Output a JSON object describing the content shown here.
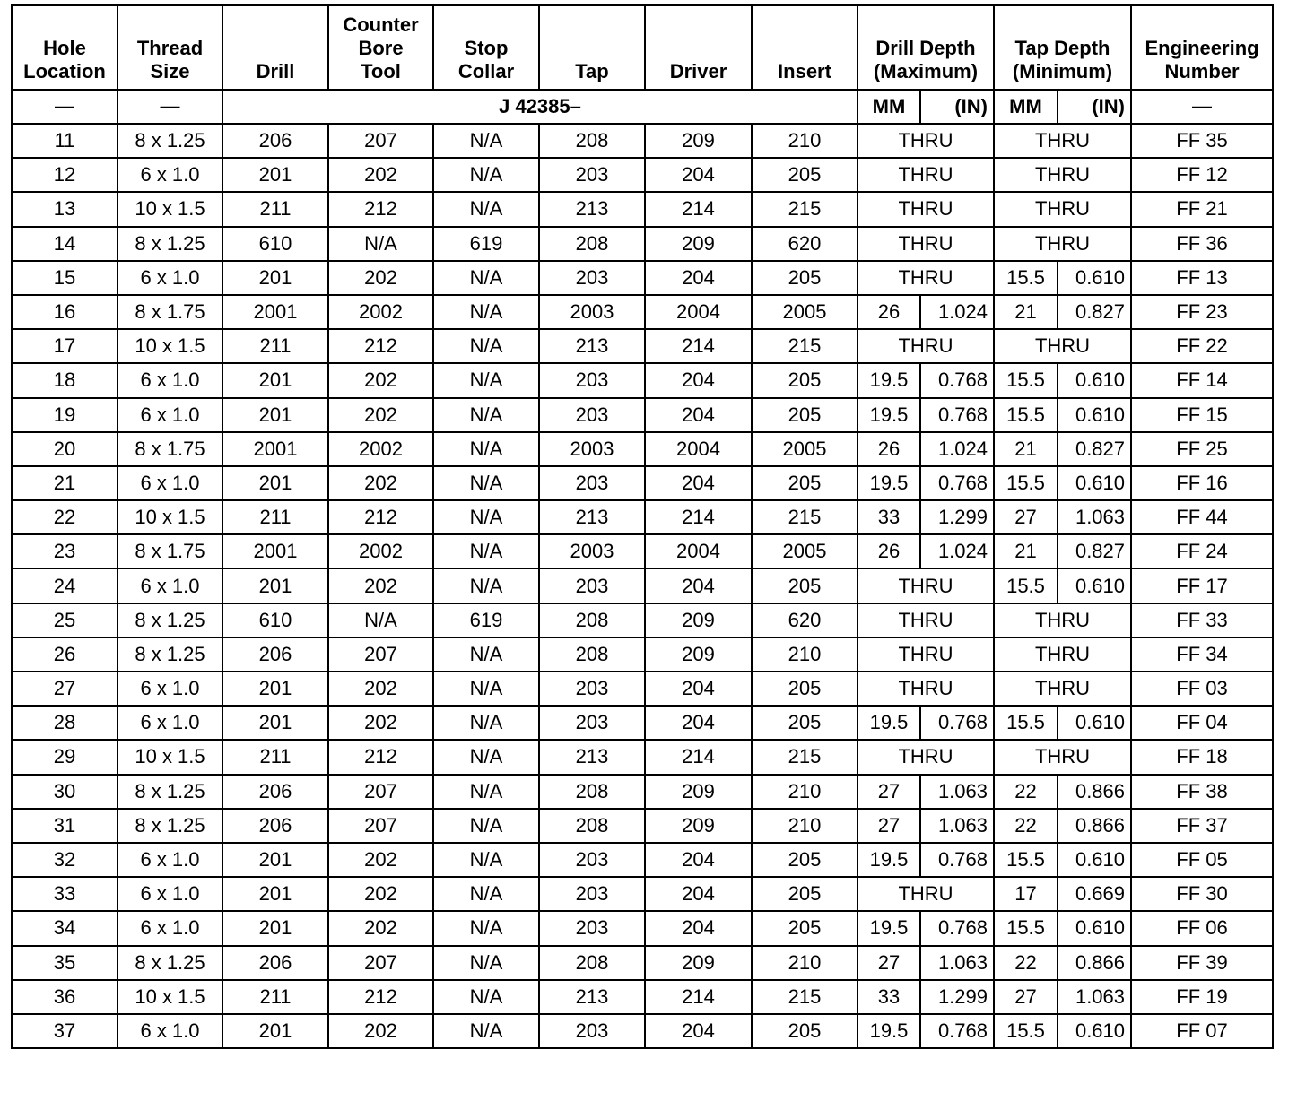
{
  "table": {
    "header": [
      "Hole\nLocation",
      "Thread\nSize",
      "Drill",
      "Counter\nBore\nTool",
      "Stop\nCollar",
      "Tap",
      "Driver",
      "Insert",
      "Drill Depth\n(Maximum)",
      "Tap Depth\n(Minimum)",
      "Engineering\nNumber"
    ],
    "subheader": {
      "location": "—",
      "thread": "—",
      "tool_prefix": "J 42385–",
      "drill_units": [
        "MM",
        "(IN)"
      ],
      "tap_units": [
        "MM",
        "(IN)"
      ],
      "number": "—"
    },
    "rows": [
      {
        "location": "11",
        "thread": "8 x 1.25",
        "tools": [
          "206",
          "207",
          "N/A",
          "208",
          "209",
          "210"
        ],
        "drill_depth": [
          "THRU"
        ],
        "tap_depth": [
          "THRU"
        ],
        "number": "FF 35"
      },
      {
        "location": "12",
        "thread": "6 x 1.0",
        "tools": [
          "201",
          "202",
          "N/A",
          "203",
          "204",
          "205"
        ],
        "drill_depth": [
          "THRU"
        ],
        "tap_depth": [
          "THRU"
        ],
        "number": "FF 12"
      },
      {
        "location": "13",
        "thread": "10 x 1.5",
        "tools": [
          "211",
          "212",
          "N/A",
          "213",
          "214",
          "215"
        ],
        "drill_depth": [
          "THRU"
        ],
        "tap_depth": [
          "THRU"
        ],
        "number": "FF 21"
      },
      {
        "location": "14",
        "thread": "8 x 1.25",
        "tools": [
          "610",
          "N/A",
          "619",
          "208",
          "209",
          "620"
        ],
        "drill_depth": [
          "THRU"
        ],
        "tap_depth": [
          "THRU"
        ],
        "number": "FF 36"
      },
      {
        "location": "15",
        "thread": "6 x 1.0",
        "tools": [
          "201",
          "202",
          "N/A",
          "203",
          "204",
          "205"
        ],
        "drill_depth": [
          "THRU"
        ],
        "tap_depth": [
          "15.5",
          "0.610"
        ],
        "number": "FF 13"
      },
      {
        "location": "16",
        "thread": "8 x 1.75",
        "tools": [
          "2001",
          "2002",
          "N/A",
          "2003",
          "2004",
          "2005"
        ],
        "drill_depth": [
          "26",
          "1.024"
        ],
        "tap_depth": [
          "21",
          "0.827"
        ],
        "number": "FF 23"
      },
      {
        "location": "17",
        "thread": "10 x 1.5",
        "tools": [
          "211",
          "212",
          "N/A",
          "213",
          "214",
          "215"
        ],
        "drill_depth": [
          "THRU"
        ],
        "tap_depth": [
          "THRU"
        ],
        "number": "FF 22"
      },
      {
        "location": "18",
        "thread": "6 x 1.0",
        "tools": [
          "201",
          "202",
          "N/A",
          "203",
          "204",
          "205"
        ],
        "drill_depth": [
          "19.5",
          "0.768"
        ],
        "tap_depth": [
          "15.5",
          "0.610"
        ],
        "number": "FF 14"
      },
      {
        "location": "19",
        "thread": "6 x 1.0",
        "tools": [
          "201",
          "202",
          "N/A",
          "203",
          "204",
          "205"
        ],
        "drill_depth": [
          "19.5",
          "0.768"
        ],
        "tap_depth": [
          "15.5",
          "0.610"
        ],
        "number": "FF 15"
      },
      {
        "location": "20",
        "thread": "8 x 1.75",
        "tools": [
          "2001",
          "2002",
          "N/A",
          "2003",
          "2004",
          "2005"
        ],
        "drill_depth": [
          "26",
          "1.024"
        ],
        "tap_depth": [
          "21",
          "0.827"
        ],
        "number": "FF 25"
      },
      {
        "location": "21",
        "thread": "6 x 1.0",
        "tools": [
          "201",
          "202",
          "N/A",
          "203",
          "204",
          "205"
        ],
        "drill_depth": [
          "19.5",
          "0.768"
        ],
        "tap_depth": [
          "15.5",
          "0.610"
        ],
        "number": "FF 16"
      },
      {
        "location": "22",
        "thread": "10 x 1.5",
        "tools": [
          "211",
          "212",
          "N/A",
          "213",
          "214",
          "215"
        ],
        "drill_depth": [
          "33",
          "1.299"
        ],
        "tap_depth": [
          "27",
          "1.063"
        ],
        "number": "FF 44"
      },
      {
        "location": "23",
        "thread": "8 x 1.75",
        "tools": [
          "2001",
          "2002",
          "N/A",
          "2003",
          "2004",
          "2005"
        ],
        "drill_depth": [
          "26",
          "1.024"
        ],
        "tap_depth": [
          "21",
          "0.827"
        ],
        "number": "FF 24"
      },
      {
        "location": "24",
        "thread": "6 x 1.0",
        "tools": [
          "201",
          "202",
          "N/A",
          "203",
          "204",
          "205"
        ],
        "drill_depth": [
          "THRU"
        ],
        "tap_depth": [
          "15.5",
          "0.610"
        ],
        "number": "FF 17"
      },
      {
        "location": "25",
        "thread": "8 x 1.25",
        "tools": [
          "610",
          "N/A",
          "619",
          "208",
          "209",
          "620"
        ],
        "drill_depth": [
          "THRU"
        ],
        "tap_depth": [
          "THRU"
        ],
        "number": "FF 33"
      },
      {
        "location": "26",
        "thread": "8 x 1.25",
        "tools": [
          "206",
          "207",
          "N/A",
          "208",
          "209",
          "210"
        ],
        "drill_depth": [
          "THRU"
        ],
        "tap_depth": [
          "THRU"
        ],
        "number": "FF 34"
      },
      {
        "location": "27",
        "thread": "6 x 1.0",
        "tools": [
          "201",
          "202",
          "N/A",
          "203",
          "204",
          "205"
        ],
        "drill_depth": [
          "THRU"
        ],
        "tap_depth": [
          "THRU"
        ],
        "number": "FF 03"
      },
      {
        "location": "28",
        "thread": "6 x 1.0",
        "tools": [
          "201",
          "202",
          "N/A",
          "203",
          "204",
          "205"
        ],
        "drill_depth": [
          "19.5",
          "0.768"
        ],
        "tap_depth": [
          "15.5",
          "0.610"
        ],
        "number": "FF 04"
      },
      {
        "location": "29",
        "thread": "10 x 1.5",
        "tools": [
          "211",
          "212",
          "N/A",
          "213",
          "214",
          "215"
        ],
        "drill_depth": [
          "THRU"
        ],
        "tap_depth": [
          "THRU"
        ],
        "number": "FF 18"
      },
      {
        "location": "30",
        "thread": "8 x 1.25",
        "tools": [
          "206",
          "207",
          "N/A",
          "208",
          "209",
          "210"
        ],
        "drill_depth": [
          "27",
          "1.063"
        ],
        "tap_depth": [
          "22",
          "0.866"
        ],
        "number": "FF 38"
      },
      {
        "location": "31",
        "thread": "8 x 1.25",
        "tools": [
          "206",
          "207",
          "N/A",
          "208",
          "209",
          "210"
        ],
        "drill_depth": [
          "27",
          "1.063"
        ],
        "tap_depth": [
          "22",
          "0.866"
        ],
        "number": "FF 37"
      },
      {
        "location": "32",
        "thread": "6 x 1.0",
        "tools": [
          "201",
          "202",
          "N/A",
          "203",
          "204",
          "205"
        ],
        "drill_depth": [
          "19.5",
          "0.768"
        ],
        "tap_depth": [
          "15.5",
          "0.610"
        ],
        "number": "FF 05"
      },
      {
        "location": "33",
        "thread": "6 x 1.0",
        "tools": [
          "201",
          "202",
          "N/A",
          "203",
          "204",
          "205"
        ],
        "drill_depth": [
          "THRU"
        ],
        "tap_depth": [
          "17",
          "0.669"
        ],
        "number": "FF 30"
      },
      {
        "location": "34",
        "thread": "6 x 1.0",
        "tools": [
          "201",
          "202",
          "N/A",
          "203",
          "204",
          "205"
        ],
        "drill_depth": [
          "19.5",
          "0.768"
        ],
        "tap_depth": [
          "15.5",
          "0.610"
        ],
        "number": "FF 06"
      },
      {
        "location": "35",
        "thread": "8 x 1.25",
        "tools": [
          "206",
          "207",
          "N/A",
          "208",
          "209",
          "210"
        ],
        "drill_depth": [
          "27",
          "1.063"
        ],
        "tap_depth": [
          "22",
          "0.866"
        ],
        "number": "FF 39"
      },
      {
        "location": "36",
        "thread": "10 x 1.5",
        "tools": [
          "211",
          "212",
          "N/A",
          "213",
          "214",
          "215"
        ],
        "drill_depth": [
          "33",
          "1.299"
        ],
        "tap_depth": [
          "27",
          "1.063"
        ],
        "number": "FF 19"
      },
      {
        "location": "37",
        "thread": "6 x 1.0",
        "tools": [
          "201",
          "202",
          "N/A",
          "203",
          "204",
          "205"
        ],
        "drill_depth": [
          "19.5",
          "0.768"
        ],
        "tap_depth": [
          "15.5",
          "0.610"
        ],
        "number": "FF 07"
      }
    ]
  }
}
